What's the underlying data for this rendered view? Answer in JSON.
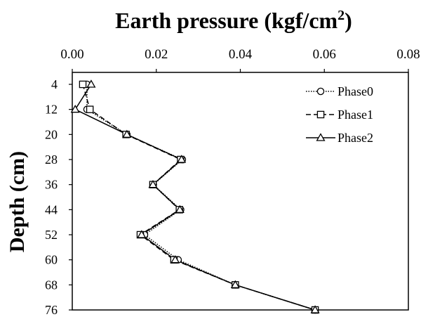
{
  "chart_data": {
    "type": "line",
    "title": "Earth pressure (kgf/cm",
    "title_sup": "2",
    "title_end": ")",
    "xlabel": "",
    "ylabel": "Depth (cm)",
    "xlim": [
      0,
      0.08
    ],
    "ylim": [
      4,
      76
    ],
    "x_axis_position": "top",
    "y_axis_inverted": true,
    "x_ticks": [
      "0.00",
      "0.02",
      "0.04",
      "0.06",
      "0.08"
    ],
    "x_tick_values": [
      0,
      0.02,
      0.04,
      0.06,
      0.08
    ],
    "y_ticks": [
      "4",
      "12",
      "20",
      "28",
      "36",
      "44",
      "52",
      "60",
      "68",
      "76"
    ],
    "y_tick_values": [
      4,
      12,
      20,
      28,
      36,
      44,
      52,
      60,
      68,
      76
    ],
    "grid": false,
    "legend_position": "top-right",
    "depths": [
      4,
      12,
      20,
      28,
      36,
      44,
      52,
      60,
      68,
      76
    ],
    "series": [
      {
        "name": "Phase0",
        "marker": "circle",
        "dash": "1.5,2",
        "values": [
          0.0035,
          0.0035,
          0.013,
          0.0262,
          0.0193,
          0.0258,
          0.0172,
          0.0252,
          0.0388,
          0.0578
        ]
      },
      {
        "name": "Phase1",
        "marker": "square",
        "dash": "7,4",
        "values": [
          0.0025,
          0.0042,
          0.0128,
          0.0258,
          0.0192,
          0.0255,
          0.0162,
          0.0242,
          0.0388,
          0.0578
        ]
      },
      {
        "name": "Phase2",
        "marker": "triangle",
        "dash": "",
        "values": [
          0.0045,
          0.0007,
          0.013,
          0.026,
          0.0192,
          0.0256,
          0.0165,
          0.0245,
          0.0388,
          0.0578
        ]
      }
    ]
  }
}
